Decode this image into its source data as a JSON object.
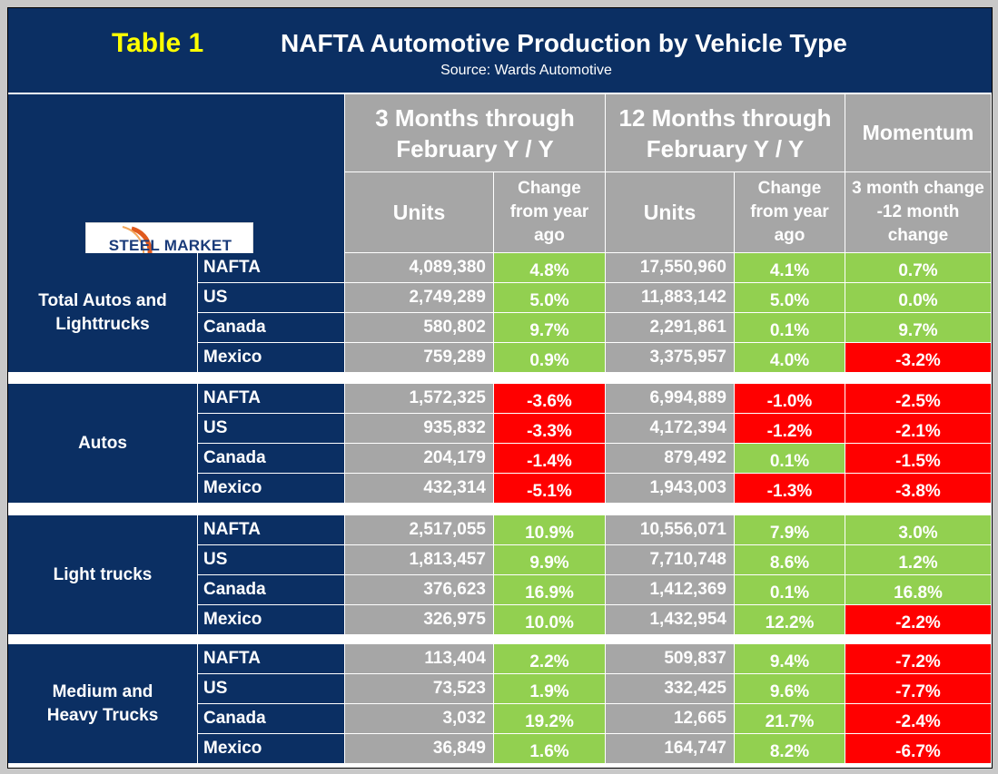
{
  "header": {
    "table_label": "Table 1",
    "title": "NAFTA Automotive Production by Vehicle Type",
    "source": "Source: Wards Automotive"
  },
  "logo": {
    "text": "STEEL MARKET UPDATE",
    "accent_color": "#e05a1e"
  },
  "columns": {
    "period_3m": "3 Months through February Y / Y",
    "period_12m": "12 Months through February Y / Y",
    "momentum": "Momentum",
    "units_3m": "Units",
    "change_3m": "Change from year ago",
    "units_12m": "Units",
    "change_12m": "Change from year ago",
    "momentum_sub": "3 month change -12 month change"
  },
  "colors": {
    "navy": "#0b2f63",
    "grey": "#a6a6a6",
    "green": "#92d050",
    "red": "#ff0000",
    "yellow": "#ffff00"
  },
  "groups": [
    {
      "name": "Total Autos and Lighttrucks",
      "rows": [
        {
          "region": "NAFTA",
          "units_3m": "4,089,380",
          "change_3m": "4.8%",
          "change_3m_status": "green",
          "units_12m": "17,550,960",
          "change_12m": "4.1%",
          "change_12m_status": "green",
          "momentum": "0.7%",
          "momentum_status": "green"
        },
        {
          "region": "US",
          "units_3m": "2,749,289",
          "change_3m": "5.0%",
          "change_3m_status": "green",
          "units_12m": "11,883,142",
          "change_12m": "5.0%",
          "change_12m_status": "green",
          "momentum": "0.0%",
          "momentum_status": "green"
        },
        {
          "region": "Canada",
          "units_3m": "580,802",
          "change_3m": "9.7%",
          "change_3m_status": "green",
          "units_12m": "2,291,861",
          "change_12m": "0.1%",
          "change_12m_status": "green",
          "momentum": "9.7%",
          "momentum_status": "green"
        },
        {
          "region": "Mexico",
          "units_3m": "759,289",
          "change_3m": "0.9%",
          "change_3m_status": "green",
          "units_12m": "3,375,957",
          "change_12m": "4.0%",
          "change_12m_status": "green",
          "momentum": "-3.2%",
          "momentum_status": "red"
        }
      ]
    },
    {
      "name": "Autos",
      "rows": [
        {
          "region": "NAFTA",
          "units_3m": "1,572,325",
          "change_3m": "-3.6%",
          "change_3m_status": "red",
          "units_12m": "6,994,889",
          "change_12m": "-1.0%",
          "change_12m_status": "red",
          "momentum": "-2.5%",
          "momentum_status": "red"
        },
        {
          "region": "US",
          "units_3m": "935,832",
          "change_3m": "-3.3%",
          "change_3m_status": "red",
          "units_12m": "4,172,394",
          "change_12m": "-1.2%",
          "change_12m_status": "red",
          "momentum": "-2.1%",
          "momentum_status": "red"
        },
        {
          "region": "Canada",
          "units_3m": "204,179",
          "change_3m": "-1.4%",
          "change_3m_status": "red",
          "units_12m": "879,492",
          "change_12m": "0.1%",
          "change_12m_status": "green",
          "momentum": "-1.5%",
          "momentum_status": "red"
        },
        {
          "region": "Mexico",
          "units_3m": "432,314",
          "change_3m": "-5.1%",
          "change_3m_status": "red",
          "units_12m": "1,943,003",
          "change_12m": "-1.3%",
          "change_12m_status": "red",
          "momentum": "-3.8%",
          "momentum_status": "red"
        }
      ]
    },
    {
      "name": "Light trucks",
      "rows": [
        {
          "region": "NAFTA",
          "units_3m": "2,517,055",
          "change_3m": "10.9%",
          "change_3m_status": "green",
          "units_12m": "10,556,071",
          "change_12m": "7.9%",
          "change_12m_status": "green",
          "momentum": "3.0%",
          "momentum_status": "green"
        },
        {
          "region": "US",
          "units_3m": "1,813,457",
          "change_3m": "9.9%",
          "change_3m_status": "green",
          "units_12m": "7,710,748",
          "change_12m": "8.6%",
          "change_12m_status": "green",
          "momentum": "1.2%",
          "momentum_status": "green"
        },
        {
          "region": "Canada",
          "units_3m": "376,623",
          "change_3m": "16.9%",
          "change_3m_status": "green",
          "units_12m": "1,412,369",
          "change_12m": "0.1%",
          "change_12m_status": "green",
          "momentum": "16.8%",
          "momentum_status": "green"
        },
        {
          "region": "Mexico",
          "units_3m": "326,975",
          "change_3m": "10.0%",
          "change_3m_status": "green",
          "units_12m": "1,432,954",
          "change_12m": "12.2%",
          "change_12m_status": "green",
          "momentum": "-2.2%",
          "momentum_status": "red"
        }
      ]
    },
    {
      "name": "Medium and Heavy Trucks",
      "rows": [
        {
          "region": "NAFTA",
          "units_3m": "113,404",
          "change_3m": "2.2%",
          "change_3m_status": "green",
          "units_12m": "509,837",
          "change_12m": "9.4%",
          "change_12m_status": "green",
          "momentum": "-7.2%",
          "momentum_status": "red"
        },
        {
          "region": "US",
          "units_3m": "73,523",
          "change_3m": "1.9%",
          "change_3m_status": "green",
          "units_12m": "332,425",
          "change_12m": "9.6%",
          "change_12m_status": "green",
          "momentum": "-7.7%",
          "momentum_status": "red"
        },
        {
          "region": "Canada",
          "units_3m": "3,032",
          "change_3m": "19.2%",
          "change_3m_status": "green",
          "units_12m": "12,665",
          "change_12m": "21.7%",
          "change_12m_status": "green",
          "momentum": "-2.4%",
          "momentum_status": "red"
        },
        {
          "region": "Mexico",
          "units_3m": "36,849",
          "change_3m": "1.6%",
          "change_3m_status": "green",
          "units_12m": "164,747",
          "change_12m": "8.2%",
          "change_12m_status": "green",
          "momentum": "-6.7%",
          "momentum_status": "red"
        }
      ]
    }
  ]
}
